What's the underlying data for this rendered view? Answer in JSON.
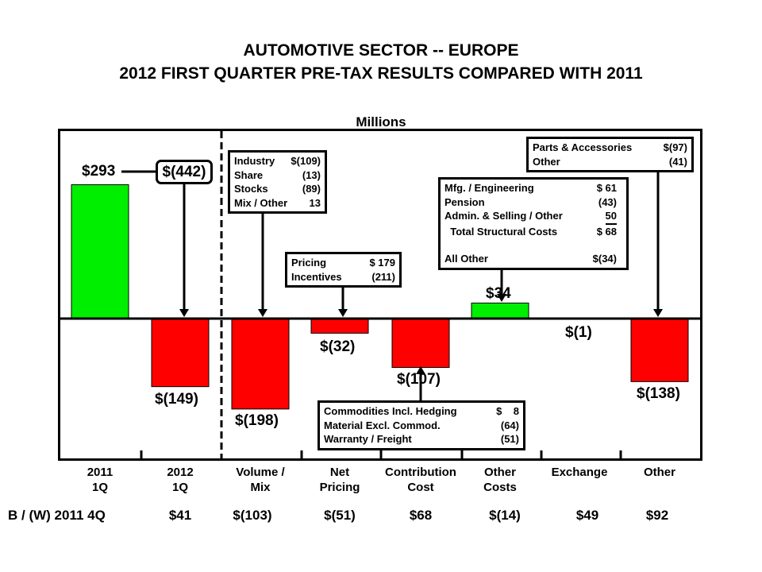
{
  "title_line1": "AUTOMOTIVE SECTOR -- EUROPE",
  "title_line2": "2012 FIRST QUARTER PRE-TAX RESULTS COMPARED WITH 2011",
  "chart_data": {
    "type": "bar",
    "unit_label": "Millions",
    "categories": [
      "2011 1Q",
      "2012 1Q",
      "Volume / Mix",
      "Net Pricing",
      "Contribution Cost",
      "Other Costs",
      "Exchange",
      "Other"
    ],
    "category_lines": [
      [
        "2011",
        "1Q"
      ],
      [
        "2012",
        "1Q"
      ],
      [
        "Volume /",
        "Mix"
      ],
      [
        "Net",
        "Pricing"
      ],
      [
        "Contribution",
        "Cost"
      ],
      [
        "Other",
        "Costs"
      ],
      [
        "Exchange",
        ""
      ],
      [
        "Other",
        ""
      ]
    ],
    "values": [
      293,
      -149,
      -198,
      -32,
      -107,
      34,
      -1,
      -138
    ],
    "value_labels": [
      "$293",
      "$(149)",
      "$(198)",
      "$(32)",
      "$(107)",
      "$34",
      "$(1)",
      "$(138)"
    ],
    "colors": {
      "positive": "#00ee00",
      "negative": "#ff0000"
    },
    "bw_label": "B / (W) 2011 4Q",
    "bw_values": [
      "$41",
      "$(103)",
      "$(51)",
      "$68",
      "$(14)",
      "$49",
      "$92"
    ],
    "total_change_label": "$(442)",
    "callouts": {
      "volume": [
        [
          "Industry",
          "$(109)"
        ],
        [
          "Share",
          "(13)"
        ],
        [
          "Stocks",
          "(89)"
        ],
        [
          "Mix / Other",
          "13"
        ]
      ],
      "pricing": [
        [
          "Pricing",
          "$ 179"
        ],
        [
          "Incentives",
          "(211)"
        ]
      ],
      "contribution": [
        [
          "Commodities Incl. Hedging",
          "$    8"
        ],
        [
          "Material Excl. Commod.",
          "(64)"
        ],
        [
          "Warranty / Freight",
          "(51)"
        ]
      ],
      "other_costs": [
        [
          "Mfg. / Engineering",
          "$ 61"
        ],
        [
          "Pension",
          "(43)"
        ],
        [
          "Admin. & Selling / Other",
          "50"
        ],
        [
          "  Total Structural Costs",
          "$ 68"
        ],
        [
          "",
          ""
        ],
        [
          "All Other",
          "$(34)"
        ]
      ],
      "other": [
        [
          "Parts & Accessories",
          "$(97)"
        ],
        [
          "Other",
          "(41)"
        ]
      ]
    }
  }
}
